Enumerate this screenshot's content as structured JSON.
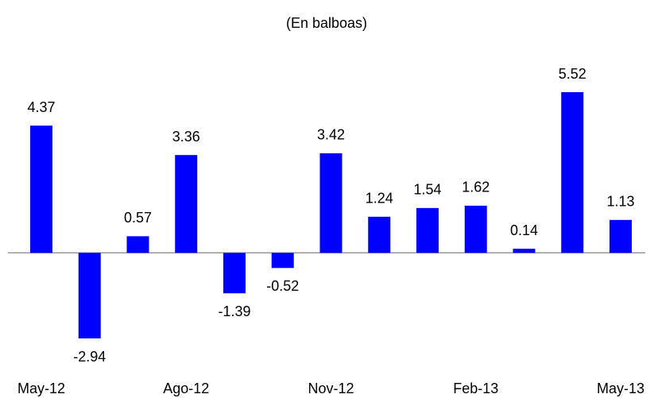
{
  "chart_data": {
    "type": "bar",
    "subtitle": "(En balboas)",
    "categories": [
      "May-12",
      null,
      null,
      "Ago-12",
      null,
      null,
      "Nov-12",
      null,
      null,
      "Feb-13",
      null,
      null,
      "May-13"
    ],
    "values": [
      4.37,
      -2.94,
      0.57,
      3.36,
      -1.39,
      -0.52,
      3.42,
      1.24,
      1.54,
      1.62,
      0.14,
      5.52,
      1.13
    ],
    "color": "#0000ff"
  }
}
